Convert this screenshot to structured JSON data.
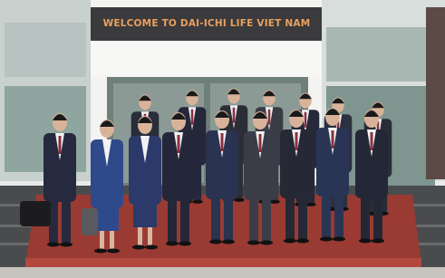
{
  "sign": {
    "text": "WELCOME TO DAI-ICHI LIFE VIET NAM"
  }
}
